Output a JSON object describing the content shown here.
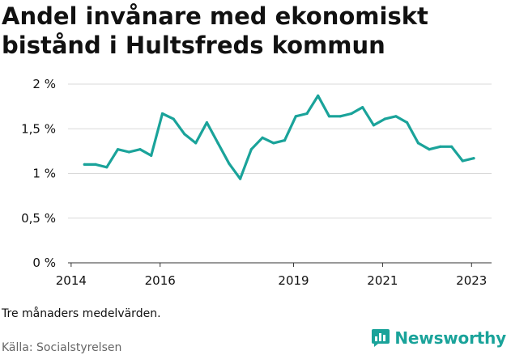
{
  "title": "Andel invånare med ekonomiskt bistånd i Hultsfreds kommun",
  "note": "Tre månaders medelvärden.",
  "source": "Källa: Socialstyrelsen",
  "brand": "Newsworthy",
  "colors": {
    "line": "#1aa39a",
    "grid": "#d9d9d9",
    "text": "#111111",
    "muted": "#666666"
  },
  "chart_data": {
    "type": "line",
    "title": "Andel invånare med ekonomiskt bistånd i Hultsfreds kommun",
    "xlabel": "",
    "ylabel": "",
    "x_ticks": [
      {
        "label": "2014",
        "value": 2014.0
      },
      {
        "label": "2016",
        "value": 2016.0
      },
      {
        "label": "2019",
        "value": 2019.0
      },
      {
        "label": "2021",
        "value": 2021.0
      },
      {
        "label": "2023",
        "value": 2023.0
      }
    ],
    "xlim": [
      2013.93,
      2023.45
    ],
    "y_ticks": [
      {
        "label": "0 %",
        "value": 0
      },
      {
        "label": "0,5 %",
        "value": 0.5
      },
      {
        "label": "1 %",
        "value": 1.0
      },
      {
        "label": "1,5 %",
        "value": 1.5
      },
      {
        "label": "2 %",
        "value": 2.0
      }
    ],
    "ylim": [
      0,
      2
    ],
    "grid": true,
    "legend": "none",
    "series": [
      {
        "points": [
          [
            2014.3,
            1.1
          ],
          [
            2014.55,
            1.1
          ],
          [
            2014.8,
            1.07
          ],
          [
            2015.05,
            1.27
          ],
          [
            2015.3,
            1.24
          ],
          [
            2015.55,
            1.27
          ],
          [
            2015.8,
            1.2
          ],
          [
            2016.05,
            1.67
          ],
          [
            2016.3,
            1.61
          ],
          [
            2016.55,
            1.44
          ],
          [
            2016.8,
            1.34
          ],
          [
            2017.05,
            1.57
          ],
          [
            2017.3,
            1.34
          ],
          [
            2017.55,
            1.11
          ],
          [
            2017.8,
            0.94
          ],
          [
            2018.05,
            1.27
          ],
          [
            2018.3,
            1.4
          ],
          [
            2018.55,
            1.34
          ],
          [
            2018.8,
            1.37
          ],
          [
            2019.05,
            1.64
          ],
          [
            2019.3,
            1.67
          ],
          [
            2019.55,
            1.87
          ],
          [
            2019.8,
            1.64
          ],
          [
            2020.05,
            1.64
          ],
          [
            2020.3,
            1.67
          ],
          [
            2020.55,
            1.74
          ],
          [
            2020.8,
            1.54
          ],
          [
            2021.05,
            1.61
          ],
          [
            2021.3,
            1.64
          ],
          [
            2021.55,
            1.57
          ],
          [
            2021.8,
            1.34
          ],
          [
            2022.05,
            1.27
          ],
          [
            2022.3,
            1.3
          ],
          [
            2022.55,
            1.3
          ],
          [
            2022.8,
            1.14
          ],
          [
            2023.05,
            1.17
          ]
        ]
      }
    ]
  }
}
